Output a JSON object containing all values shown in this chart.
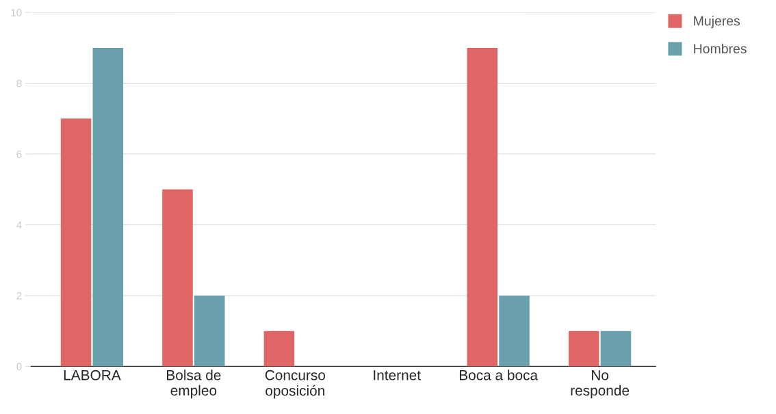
{
  "chart_data": {
    "type": "bar",
    "categories": [
      "LABORA",
      "Bolsa de\nempleo",
      "Concurso\noposición",
      "Internet",
      "Boca a boca",
      "No\nresponde"
    ],
    "series": [
      {
        "name": "Mujeres",
        "color": "#e06666",
        "values": [
          7,
          5,
          1,
          0,
          9,
          1
        ]
      },
      {
        "name": "Hombres",
        "color": "#6aa0ab",
        "values": [
          9,
          2,
          0,
          0,
          2,
          1
        ]
      }
    ],
    "ylim": [
      0,
      10
    ],
    "yticks": [
      0,
      2,
      4,
      6,
      8,
      10
    ],
    "grid": "y",
    "legend": "top right"
  }
}
